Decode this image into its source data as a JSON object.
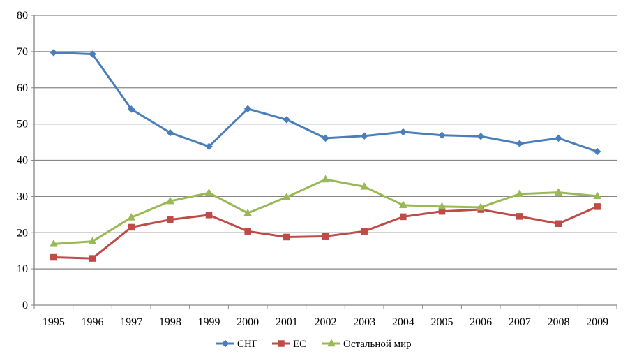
{
  "chart_data": {
    "type": "line",
    "title": "",
    "xlabel": "",
    "ylabel": "",
    "ylim": [
      0,
      80
    ],
    "yticks": [
      "0",
      "10",
      "20",
      "30",
      "40",
      "50",
      "60",
      "70",
      "80"
    ],
    "categories": [
      "1995",
      "1996",
      "1997",
      "1998",
      "1999",
      "2000",
      "2001",
      "2002",
      "2003",
      "2004",
      "2005",
      "2006",
      "2007",
      "2008",
      "2009"
    ],
    "grid": "horizontal",
    "legend_position": "bottom",
    "series": [
      {
        "name": "СНГ",
        "color": "#4a7ebb",
        "marker": "diamond",
        "values": [
          69.7,
          69.3,
          54.1,
          47.6,
          43.8,
          54.2,
          51.2,
          46.1,
          46.7,
          47.8,
          46.9,
          46.6,
          44.6,
          46.1,
          42.4
        ]
      },
      {
        "name": "ЕС",
        "color": "#be4b48",
        "marker": "square",
        "values": [
          13.2,
          12.9,
          21.5,
          23.6,
          24.9,
          20.4,
          18.8,
          19.0,
          20.4,
          24.4,
          25.9,
          26.4,
          24.5,
          22.5,
          27.2
        ]
      },
      {
        "name": "Остальной мир",
        "color": "#98b954",
        "marker": "triangle",
        "values": [
          16.9,
          17.6,
          24.2,
          28.7,
          31.0,
          25.4,
          29.8,
          34.7,
          32.7,
          27.6,
          27.2,
          27.0,
          30.7,
          31.1,
          30.1
        ]
      }
    ]
  }
}
